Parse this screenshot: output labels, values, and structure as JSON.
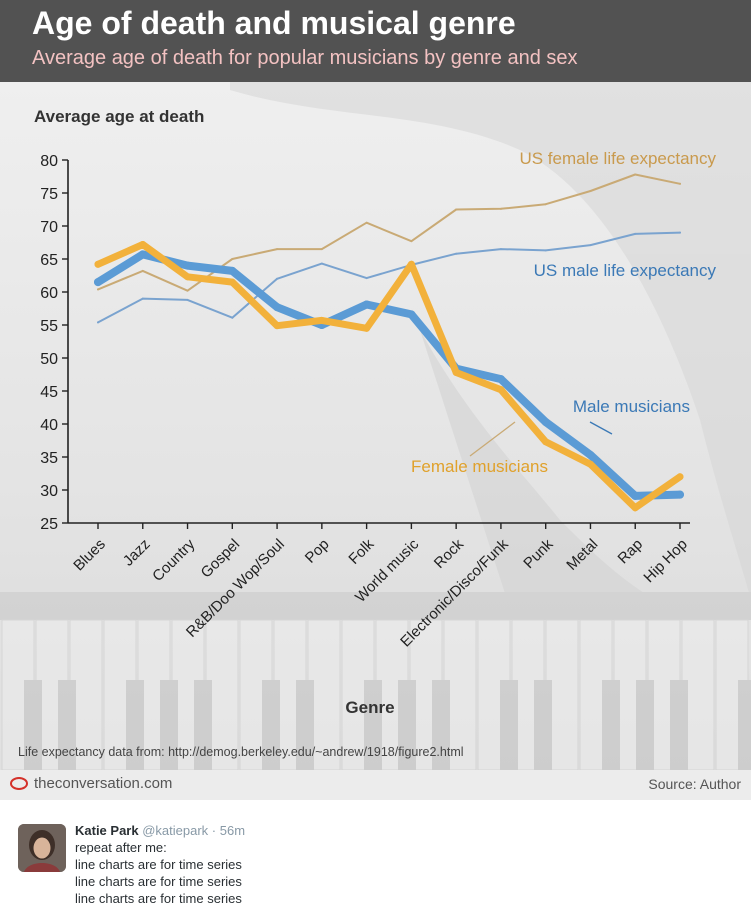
{
  "card": {
    "title": "Age of death and musical genre",
    "subtitle": "Average age of death for popular musicians by genre and sex",
    "source_note": "Life expectancy data from: http://demog.berkeley.edu/~andrew/1918/figure2.html",
    "brand": "theconversation.com",
    "credit": "Source: Author"
  },
  "colors": {
    "header_bg": "#525252",
    "subtitle": "#f3c2c2",
    "male": "#5b9bd5",
    "female": "#f2b13b",
    "us_male": "#7aa3cf",
    "us_female": "#c9aa75",
    "male_label": "#3b79b6",
    "female_label": "#e0a12b",
    "us_female_label": "#c99a4d",
    "brand_red": "#d4312a"
  },
  "chart_data": {
    "type": "line",
    "ylabel": "Average age at death",
    "xlabel": "Genre",
    "ylim": [
      25,
      80
    ],
    "yticks": [
      25,
      30,
      35,
      40,
      45,
      50,
      55,
      60,
      65,
      70,
      75,
      80
    ],
    "categories": [
      "Blues",
      "Jazz",
      "Country",
      "Gospel",
      "R&B/Doo Wop/Soul",
      "Pop",
      "Folk",
      "World music",
      "Rock",
      "Electronic/Disco/Funk",
      "Punk",
      "Metal",
      "Rap",
      "Hip Hop"
    ],
    "series": [
      {
        "name": "US female life expectancy",
        "key": "us_female",
        "values": [
          60.4,
          63.2,
          60.2,
          65.0,
          66.5,
          66.5,
          70.5,
          67.7,
          72.5,
          72.6,
          73.3,
          75.3,
          77.8,
          76.4
        ]
      },
      {
        "name": "US male life expectancy",
        "key": "us_male",
        "values": [
          55.4,
          59.0,
          58.8,
          56.1,
          62.0,
          64.3,
          62.1,
          64.1,
          65.8,
          66.5,
          66.3,
          67.1,
          68.8,
          69.0
        ]
      },
      {
        "name": "Male musicians",
        "key": "male",
        "values": [
          61.5,
          65.7,
          64.0,
          63.2,
          57.7,
          55.0,
          58.1,
          56.6,
          48.4,
          46.8,
          40.3,
          35.3,
          29.1,
          29.3
        ]
      },
      {
        "name": "Female musicians",
        "key": "female",
        "values": [
          64.2,
          67.2,
          62.3,
          61.5,
          54.9,
          55.7,
          54.5,
          64.2,
          47.8,
          45.2,
          37.3,
          33.9,
          27.3,
          32.0
        ]
      }
    ]
  },
  "tweet": {
    "name": "Katie Park",
    "handle": "@katiepark",
    "time": "· 56m",
    "lines": [
      "repeat after me:",
      "line charts are for time series",
      "line charts are for time series",
      "line charts are for time series"
    ]
  }
}
